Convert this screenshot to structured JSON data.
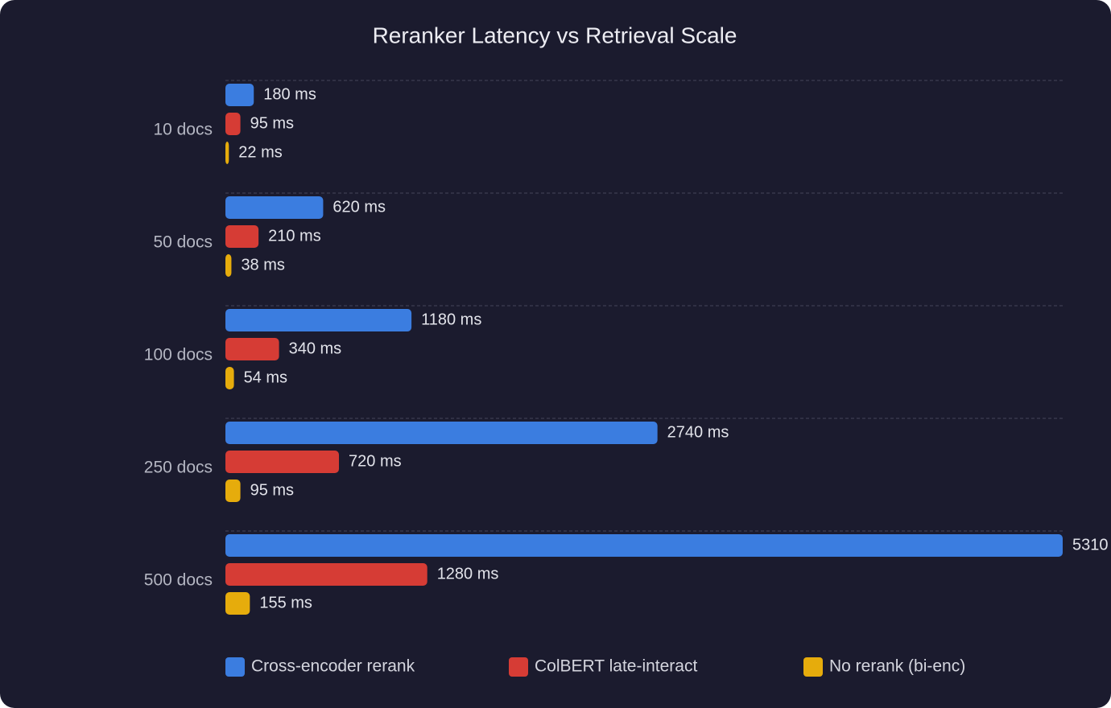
{
  "chart_data": {
    "type": "hbar",
    "title": "Reranker Latency vs Retrieval Scale",
    "categories": [
      "10 docs",
      "50 docs",
      "100 docs",
      "250 docs",
      "500 docs"
    ],
    "series": [
      {
        "name": "Cross-encoder rerank",
        "color": "#3b7de0",
        "values": [
          180,
          620,
          1180,
          2740,
          5310
        ],
        "value_labels": [
          "180 ms",
          "620 ms",
          "1180 ms",
          "2740 ms",
          "5310"
        ]
      },
      {
        "name": "ColBERT late-interact",
        "color": "#d63c35",
        "values": [
          95,
          210,
          340,
          720,
          1280
        ],
        "value_labels": [
          "95 ms",
          "210 ms",
          "340 ms",
          "720 ms",
          "1280 ms"
        ]
      },
      {
        "name": "No rerank (bi-enc)",
        "color": "#e6ac0c",
        "values": [
          22,
          38,
          54,
          95,
          155
        ],
        "value_labels": [
          "22 ms",
          "38 ms",
          "54 ms",
          "95 ms",
          "155 ms"
        ]
      }
    ],
    "xlim": [
      0,
      5310
    ]
  }
}
